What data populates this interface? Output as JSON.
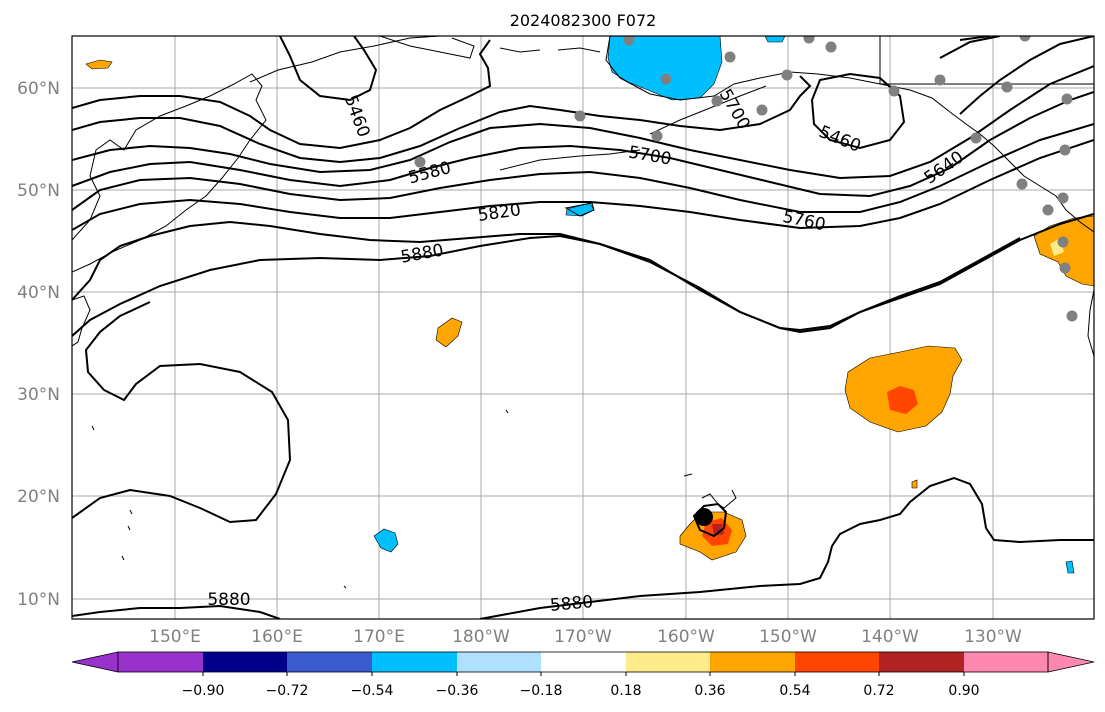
{
  "title": "2024082300 F072",
  "lat_labels": [
    "10°N",
    "20°N",
    "30°N",
    "40°N",
    "50°N",
    "60°N"
  ],
  "lon_labels": [
    "150°E",
    "160°E",
    "170°E",
    "180°W",
    "170°W",
    "160°W",
    "150°W",
    "140°W",
    "130°W"
  ],
  "contour_labels": [
    "5460",
    "5580",
    "5700",
    "5820",
    "5880",
    "5760",
    "5460",
    "5640",
    "5880",
    "5880",
    "5700"
  ],
  "colorbar": {
    "ticks": [
      "−0.90",
      "−0.72",
      "−0.54",
      "−0.36",
      "−0.18",
      "0.18",
      "0.36",
      "0.54",
      "0.72",
      "0.90"
    ],
    "colors": [
      "#9932cc",
      "#00008b",
      "#3a5bcd",
      "#00bfff",
      "#b0e0ff",
      "#ffffff",
      "#ffeb8a",
      "#ffa500",
      "#ff4500",
      "#b22222",
      "#ff88b0"
    ]
  },
  "colors": {
    "positive_light": "#ffeb8a",
    "positive_mid": "#ffa500",
    "positive_high": "#ff4500",
    "negative_light": "#b0e0ff",
    "negative_mid": "#00bfff",
    "station": "#808080",
    "cyclone": "#000000"
  }
}
